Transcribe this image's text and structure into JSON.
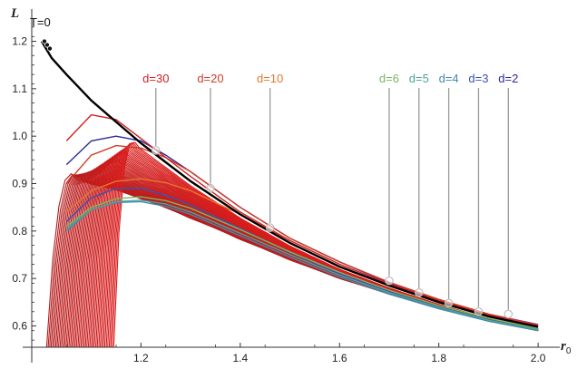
{
  "chart_data": {
    "type": "line",
    "xlabel": "r",
    "xlabel_sub": "0",
    "ylabel": "L",
    "xlim": [
      0.98,
      2.04
    ],
    "ylim": [
      0.555,
      1.245
    ],
    "x_ticks": [
      1.2,
      1.4,
      1.6,
      1.8,
      2.0
    ],
    "x_tick_labels": [
      "1.2",
      "1.4",
      "1.6",
      "1.8",
      "2.0"
    ],
    "y_ticks": [
      0.6,
      0.7,
      0.8,
      0.9,
      1.0,
      1.1,
      1.2
    ],
    "y_tick_labels": [
      "0.6",
      "0.7",
      "0.8",
      "0.9",
      "1.0",
      "1.1",
      "1.2"
    ],
    "grid": false,
    "envelope": {
      "label": "T=0",
      "color": "#000000",
      "x": [
        1.0,
        1.02,
        1.05,
        1.1,
        1.15,
        1.2,
        1.25,
        1.3,
        1.4,
        1.5,
        1.6,
        1.7,
        1.8,
        1.9,
        2.0
      ],
      "y": [
        1.2,
        1.165,
        1.13,
        1.075,
        1.03,
        0.985,
        0.945,
        0.905,
        0.835,
        0.775,
        0.725,
        0.685,
        0.65,
        0.62,
        0.598
      ]
    },
    "series": [
      {
        "name": "d=2",
        "color": "#2b2a9c",
        "x": [
          1.05,
          1.1,
          1.15,
          1.2,
          1.25,
          1.3,
          1.4,
          1.5,
          1.6,
          1.7,
          1.8,
          1.9,
          2.0
        ],
        "y": [
          0.94,
          0.99,
          1.0,
          0.99,
          0.96,
          0.925,
          0.85,
          0.785,
          0.735,
          0.69,
          0.655,
          0.625,
          0.603
        ]
      },
      {
        "name": "d=3",
        "color": "#3b52b5",
        "x": [
          1.05,
          1.1,
          1.15,
          1.2,
          1.25,
          1.3,
          1.4,
          1.5,
          1.6,
          1.7,
          1.8,
          1.9,
          2.0
        ],
        "y": [
          0.82,
          0.87,
          0.89,
          0.89,
          0.875,
          0.855,
          0.805,
          0.755,
          0.71,
          0.672,
          0.64,
          0.613,
          0.592
        ]
      },
      {
        "name": "d=4",
        "color": "#3f8bb0",
        "x": [
          1.05,
          1.1,
          1.15,
          1.2,
          1.25,
          1.3,
          1.4,
          1.5,
          1.6,
          1.7,
          1.8,
          1.9,
          2.0
        ],
        "y": [
          0.8,
          0.845,
          0.86,
          0.862,
          0.852,
          0.835,
          0.79,
          0.745,
          0.703,
          0.667,
          0.636,
          0.61,
          0.59
        ]
      },
      {
        "name": "d=5",
        "color": "#4aa59c",
        "x": [
          1.05,
          1.1,
          1.15,
          1.2,
          1.25,
          1.3,
          1.4,
          1.5,
          1.6,
          1.7,
          1.8,
          1.9,
          2.0
        ],
        "y": [
          0.805,
          0.845,
          0.862,
          0.865,
          0.857,
          0.84,
          0.795,
          0.75,
          0.707,
          0.67,
          0.639,
          0.612,
          0.592
        ]
      },
      {
        "name": "d=6",
        "color": "#79b760",
        "x": [
          1.05,
          1.1,
          1.15,
          1.2,
          1.25,
          1.3,
          1.4,
          1.5,
          1.6,
          1.7,
          1.8,
          1.9,
          2.0
        ],
        "y": [
          0.81,
          0.85,
          0.868,
          0.872,
          0.864,
          0.848,
          0.803,
          0.756,
          0.713,
          0.675,
          0.643,
          0.616,
          0.595
        ]
      },
      {
        "name": "d=10",
        "color": "#e3782f",
        "x": [
          1.05,
          1.1,
          1.15,
          1.2,
          1.25,
          1.3,
          1.4,
          1.5,
          1.6,
          1.7,
          1.8,
          1.9,
          2.0
        ],
        "y": [
          0.84,
          0.885,
          0.905,
          0.91,
          0.902,
          0.885,
          0.835,
          0.78,
          0.73,
          0.688,
          0.653,
          0.623,
          0.6
        ]
      },
      {
        "name": "d=20",
        "color": "#d23a26",
        "x": [
          1.05,
          1.1,
          1.15,
          1.2,
          1.25,
          1.3,
          1.4,
          1.5,
          1.6,
          1.7,
          1.8,
          1.9,
          2.0
        ],
        "y": [
          0.9,
          0.96,
          0.98,
          0.975,
          0.955,
          0.925,
          0.85,
          0.785,
          0.735,
          0.692,
          0.656,
          0.625,
          0.602
        ]
      },
      {
        "name": "d=30",
        "color": "#d32020",
        "x": [
          1.05,
          1.1,
          1.15,
          1.2,
          1.25,
          1.3,
          1.4,
          1.5,
          1.6,
          1.7,
          1.8,
          1.9,
          2.0
        ],
        "y": [
          0.99,
          1.045,
          1.035,
          0.995,
          0.955,
          0.915,
          0.84,
          0.78,
          0.73,
          0.688,
          0.653,
          0.623,
          0.6
        ]
      }
    ],
    "annotations": [
      {
        "label": "d=30",
        "color": "#d32020",
        "x": 1.23,
        "y": 0.97
      },
      {
        "label": "d=20",
        "color": "#d23a26",
        "x": 1.34,
        "y": 0.89
      },
      {
        "label": "d=10",
        "color": "#e3782f",
        "x": 1.46,
        "y": 0.807
      },
      {
        "label": "d=6",
        "color": "#79b760",
        "x": 1.7,
        "y": 0.695
      },
      {
        "label": "d=5",
        "color": "#4aa59c",
        "x": 1.76,
        "y": 0.67
      },
      {
        "label": "d=4",
        "color": "#3f8bb0",
        "x": 1.82,
        "y": 0.648
      },
      {
        "label": "d=3",
        "color": "#3b52b5",
        "x": 1.88,
        "y": 0.63
      },
      {
        "label": "d=2",
        "color": "#2b2a9c",
        "x": 1.94,
        "y": 0.625
      }
    ]
  }
}
